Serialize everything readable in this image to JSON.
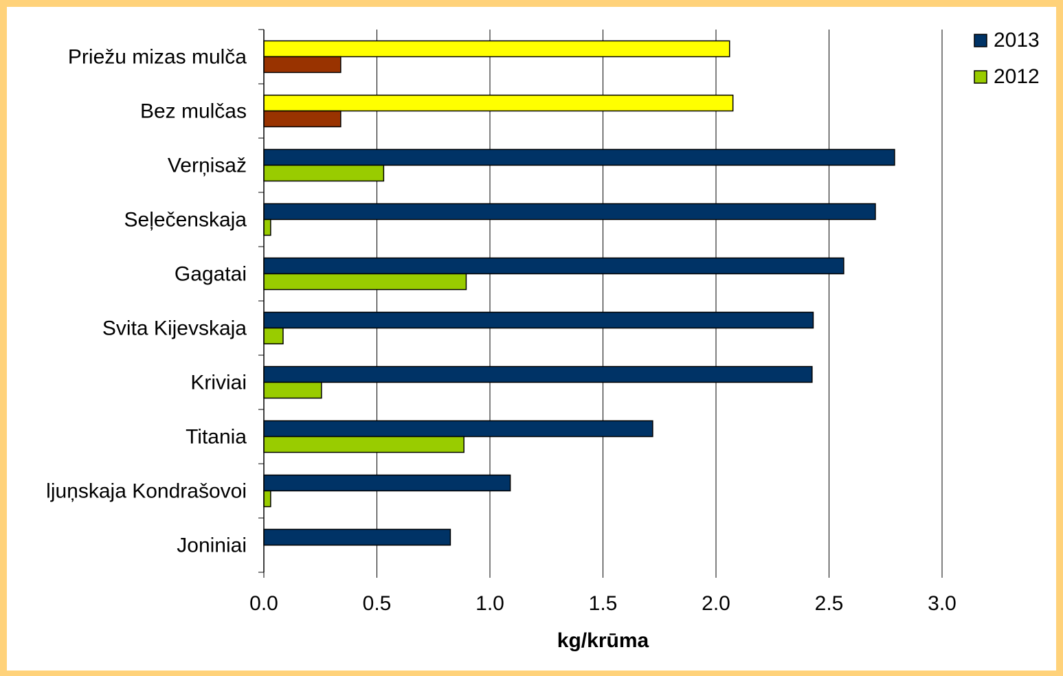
{
  "chart_data": {
    "type": "bar",
    "orientation": "horizontal",
    "categories": [
      "Priežu mizas mulča",
      "Bez mulčas",
      "Verņisaž",
      "Seļečenskaja",
      "Gagatai",
      "Svita Kijevskaja",
      "Kriviai",
      "Titania",
      "ljuņskaja Kondrašovoi",
      "Joniniai"
    ],
    "series": [
      {
        "name": "2013",
        "color": "#003366",
        "values": [
          2.06,
          2.075,
          2.79,
          2.705,
          2.565,
          2.43,
          2.425,
          1.72,
          1.09,
          0.825
        ],
        "point_colors": [
          "#ffff00",
          "#ffff00",
          null,
          null,
          null,
          null,
          null,
          null,
          null,
          null
        ]
      },
      {
        "name": "2012",
        "color": "#99cc00",
        "values": [
          0.34,
          0.34,
          0.53,
          0.03,
          0.895,
          0.085,
          0.255,
          0.885,
          0.03,
          null
        ],
        "point_colors": [
          "#993300",
          "#993300",
          null,
          null,
          null,
          null,
          null,
          null,
          null,
          null
        ]
      }
    ],
    "xlabel": "kg/krūma",
    "xlim": [
      0,
      3
    ],
    "xticks": [
      "0.0",
      "0.5",
      "1.0",
      "1.5",
      "2.0",
      "2.5",
      "3.0"
    ],
    "grid": "vertical",
    "legend_position": "top-right"
  }
}
